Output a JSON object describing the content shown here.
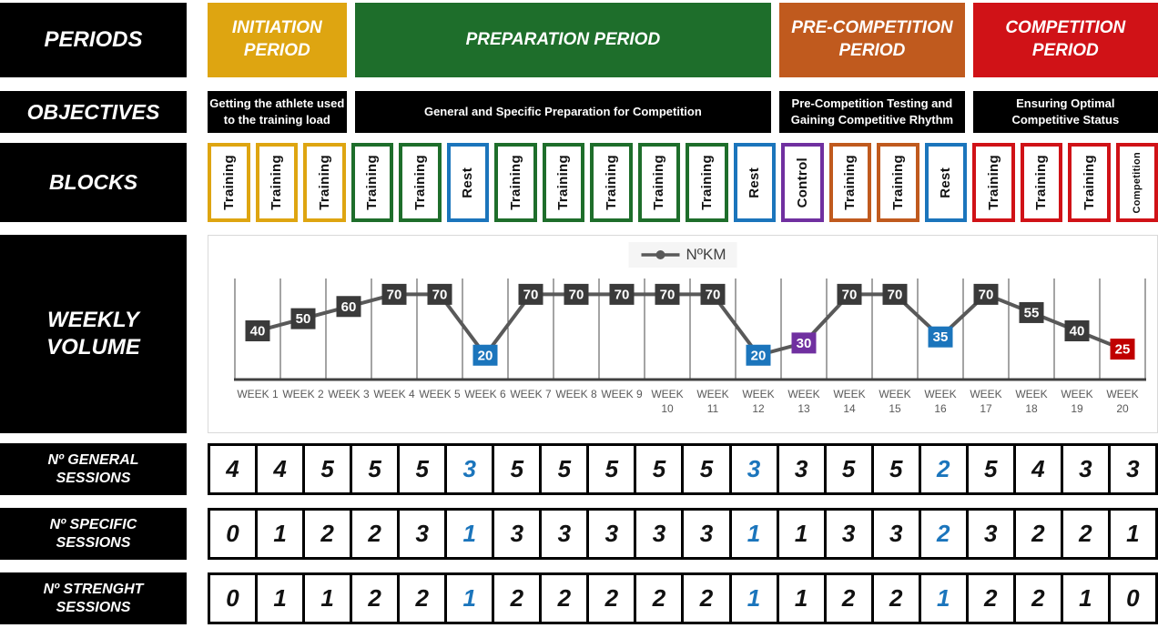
{
  "left_labels": {
    "periods": "PERIODS",
    "objectives": "OBJECTIVES",
    "blocks": "BLOCKS",
    "weekly_volume": "WEEKLY\nVOLUME",
    "general_sessions": "Nº GENERAL\nSESSIONS",
    "specific_sessions": "Nº SPECIFIC\nSESSIONS",
    "strength_sessions": "Nº STRENGHT\nSESSIONS"
  },
  "periods": [
    {
      "title": "INITIATION\nPERIOD",
      "objective": "Getting the athlete used\nto the training load",
      "color": "#DEA511",
      "weeks": 3
    },
    {
      "title": "PREPARATION PERIOD",
      "objective": "General and Specific Preparation for Competition",
      "color": "#1E6E2B",
      "weeks": 9
    },
    {
      "title": "PRE-COMPETITION\nPERIOD",
      "objective": "Pre-Competition Testing and\nGaining Competitive Rhythm",
      "color": "#C05A1E",
      "weeks": 4
    },
    {
      "title": "COMPETITION\nPERIOD",
      "objective": "Ensuring Optimal\nCompetitive Status",
      "color": "#D01217",
      "weeks": 4
    }
  ],
  "blocks": [
    {
      "label": "Training",
      "color": "#DEA511"
    },
    {
      "label": "Training",
      "color": "#DEA511"
    },
    {
      "label": "Training",
      "color": "#DEA511"
    },
    {
      "label": "Training",
      "color": "#1E6E2B"
    },
    {
      "label": "Training",
      "color": "#1E6E2B"
    },
    {
      "label": "Rest",
      "color": "#1B75BC"
    },
    {
      "label": "Training",
      "color": "#1E6E2B"
    },
    {
      "label": "Training",
      "color": "#1E6E2B"
    },
    {
      "label": "Training",
      "color": "#1E6E2B"
    },
    {
      "label": "Training",
      "color": "#1E6E2B"
    },
    {
      "label": "Training",
      "color": "#1E6E2B"
    },
    {
      "label": "Rest",
      "color": "#1B75BC"
    },
    {
      "label": "Control",
      "color": "#7030A0"
    },
    {
      "label": "Training",
      "color": "#C05A1E"
    },
    {
      "label": "Training",
      "color": "#C05A1E"
    },
    {
      "label": "Rest",
      "color": "#1B75BC"
    },
    {
      "label": "Training",
      "color": "#D01217"
    },
    {
      "label": "Training",
      "color": "#D01217"
    },
    {
      "label": "Training",
      "color": "#D01217"
    },
    {
      "label": "Competition",
      "color": "#D01217"
    }
  ],
  "chart_data": {
    "type": "line",
    "title": "Weekly Volume",
    "legend": "NºKM",
    "legend_position": "top-center",
    "grid": "vertical",
    "categories": [
      "WEEK 1",
      "WEEK 2",
      "WEEK 3",
      "WEEK 4",
      "WEEK 5",
      "WEEK 6",
      "WEEK 7",
      "WEEK 8",
      "WEEK 9",
      "WEEK 10",
      "WEEK 11",
      "WEEK 12",
      "WEEK 13",
      "WEEK 14",
      "WEEK 15",
      "WEEK 16",
      "WEEK 17",
      "WEEK 18",
      "WEEK 19",
      "WEEK 20"
    ],
    "series": [
      {
        "name": "NºKM",
        "values": [
          40,
          50,
          60,
          70,
          70,
          20,
          70,
          70,
          70,
          70,
          70,
          20,
          30,
          70,
          70,
          35,
          70,
          55,
          40,
          25
        ]
      }
    ],
    "ylim": [
      0,
      83
    ],
    "line_color": "#595959",
    "axis_color": "#404040",
    "label_text_color": "#FFFFFF",
    "point_label_colors": [
      "#3A3A3A",
      "#3A3A3A",
      "#3A3A3A",
      "#3A3A3A",
      "#3A3A3A",
      "#1B75BC",
      "#3A3A3A",
      "#3A3A3A",
      "#3A3A3A",
      "#3A3A3A",
      "#3A3A3A",
      "#1B75BC",
      "#7030A0",
      "#3A3A3A",
      "#3A3A3A",
      "#1B75BC",
      "#3A3A3A",
      "#3A3A3A",
      "#3A3A3A",
      "#C00000"
    ]
  },
  "sessions": [
    {
      "name": "general",
      "values": [
        4,
        4,
        5,
        5,
        5,
        3,
        5,
        5,
        5,
        5,
        5,
        3,
        3,
        5,
        5,
        2,
        5,
        4,
        3,
        3
      ],
      "blue_indexes": [
        5,
        11,
        15
      ]
    },
    {
      "name": "specific",
      "values": [
        0,
        1,
        2,
        2,
        3,
        1,
        3,
        3,
        3,
        3,
        3,
        1,
        1,
        3,
        3,
        2,
        3,
        2,
        2,
        1
      ],
      "blue_indexes": [
        5,
        11,
        15
      ]
    },
    {
      "name": "strenght",
      "values": [
        0,
        1,
        1,
        2,
        2,
        1,
        2,
        2,
        2,
        2,
        2,
        1,
        1,
        2,
        2,
        1,
        2,
        2,
        1,
        0
      ],
      "blue_indexes": [
        5,
        11,
        15
      ]
    }
  ],
  "colors": {
    "highlight_blue": "#1B75BC",
    "grid_line": "#4A4A4A"
  }
}
